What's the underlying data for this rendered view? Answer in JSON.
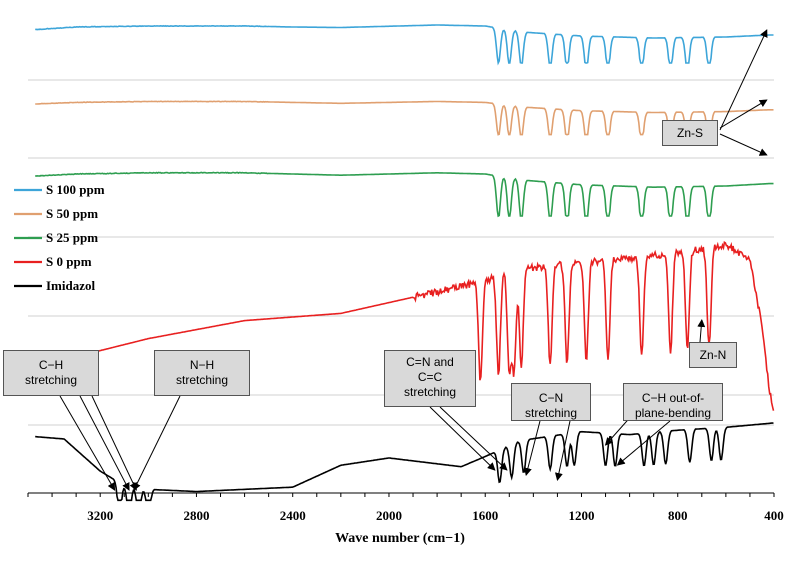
{
  "chart_data": {
    "type": "line",
    "title": "",
    "xlabel": "Wave number (cm−1)",
    "ylabel": "",
    "xlim": [
      3500,
      400
    ],
    "x_ticks": [
      3200,
      2800,
      2400,
      2000,
      1600,
      1200,
      800,
      400
    ],
    "grid": "horizontal",
    "legend_position": "left",
    "series": [
      {
        "name": "S 100 ppm",
        "color": "#3da5d9",
        "baseline_x": [
          3500,
          3300,
          3000,
          2600,
          2400,
          2200,
          1800,
          1600,
          1450,
          1200,
          900,
          600,
          420
        ],
        "baseline_y": [
          0.56,
          0.62,
          0.64,
          0.64,
          0.62,
          0.61,
          0.66,
          0.64,
          0.52,
          0.44,
          0.4,
          0.42,
          0.46
        ],
        "peaks_cm": [
          1545,
          1500,
          1450,
          1330,
          1260,
          1180,
          1090,
          950,
          830,
          760,
          670
        ]
      },
      {
        "name": "S  50  ppm",
        "color": "#e0a070",
        "baseline_x": [
          3500,
          3300,
          3000,
          2600,
          2400,
          2200,
          1800,
          1600,
          1450,
          1200,
          900,
          600,
          420
        ],
        "baseline_y": [
          0.56,
          0.6,
          0.62,
          0.62,
          0.6,
          0.58,
          0.62,
          0.6,
          0.5,
          0.42,
          0.38,
          0.4,
          0.44
        ],
        "peaks_cm": [
          1545,
          1500,
          1450,
          1330,
          1260,
          1180,
          1090,
          950,
          830,
          760,
          670
        ]
      },
      {
        "name": "S  25  ppm",
        "color": "#2e9e50",
        "baseline_x": [
          3500,
          3300,
          3000,
          2600,
          2400,
          2200,
          1800,
          1600,
          1450,
          1200,
          900,
          600,
          420
        ],
        "baseline_y": [
          0.56,
          0.6,
          0.62,
          0.62,
          0.6,
          0.58,
          0.62,
          0.6,
          0.5,
          0.42,
          0.38,
          0.4,
          0.44
        ],
        "peaks_cm": [
          1545,
          1500,
          1450,
          1330,
          1260,
          1180,
          1090,
          950,
          830,
          760,
          670
        ]
      },
      {
        "name": "S   0    ppm",
        "color": "#e82020",
        "baseline_x": [
          3500,
          3300,
          3000,
          2600,
          2400,
          2200,
          1800,
          1600,
          1500,
          1200,
          900,
          700,
          600,
          500,
          450,
          420,
          400
        ],
        "baseline_y": [
          0.3,
          0.38,
          0.48,
          0.58,
          0.6,
          0.62,
          0.74,
          0.8,
          0.86,
          0.9,
          0.94,
          0.98,
          1.0,
          0.92,
          0.55,
          0.2,
          0.05
        ],
        "peaks_cm": [
          1620,
          1545,
          1500,
          1480,
          1450,
          1330,
          1260,
          1180,
          1090,
          950,
          830,
          760,
          670
        ]
      },
      {
        "name": "Imidazol",
        "color": "#000000",
        "baseline_x": [
          3500,
          3350,
          3200,
          3100,
          3000,
          2800,
          2400,
          2200,
          2000,
          1800,
          1700,
          1600,
          1450,
          1200,
          1000,
          800,
          600,
          400
        ],
        "baseline_y": [
          0.78,
          0.74,
          0.3,
          0.1,
          0.05,
          0.02,
          0.08,
          0.38,
          0.48,
          0.4,
          0.36,
          0.5,
          0.72,
          0.84,
          0.8,
          0.86,
          0.9,
          0.96
        ],
        "peaks_cm": [
          3120,
          3080,
          3040,
          3000,
          1540,
          1490,
          1440,
          1330,
          1260,
          1230,
          1100,
          1060,
          940,
          900,
          850,
          750,
          660,
          620
        ]
      }
    ],
    "annotations": [
      {
        "id": "ch-stretch",
        "text": [
          "C−H",
          "stretching"
        ],
        "points_to_cm": [
          3140,
          3080,
          3050
        ]
      },
      {
        "id": "nh-stretch",
        "text": [
          "N−H",
          "stretching"
        ],
        "points_to_cm": [
          3060
        ]
      },
      {
        "id": "cn-cc",
        "text": [
          "C=N and",
          "C=C",
          "stretching"
        ],
        "points_to_cm": [
          1560,
          1510
        ]
      },
      {
        "id": "cn-stretch",
        "text": [
          "C−N",
          "stretching"
        ],
        "points_to_cm": [
          1430,
          1300
        ]
      },
      {
        "id": "ch-oop",
        "text": [
          "C−H out-of-",
          "plane-bending"
        ],
        "points_to_cm": [
          1100,
          1050
        ]
      },
      {
        "id": "zn-n",
        "text": [
          "Zn-N"
        ],
        "points_to_cm": [
          700
        ]
      },
      {
        "id": "zn-s",
        "text": [
          "Zn-S"
        ],
        "points_to_cm": [
          430
        ]
      }
    ]
  }
}
